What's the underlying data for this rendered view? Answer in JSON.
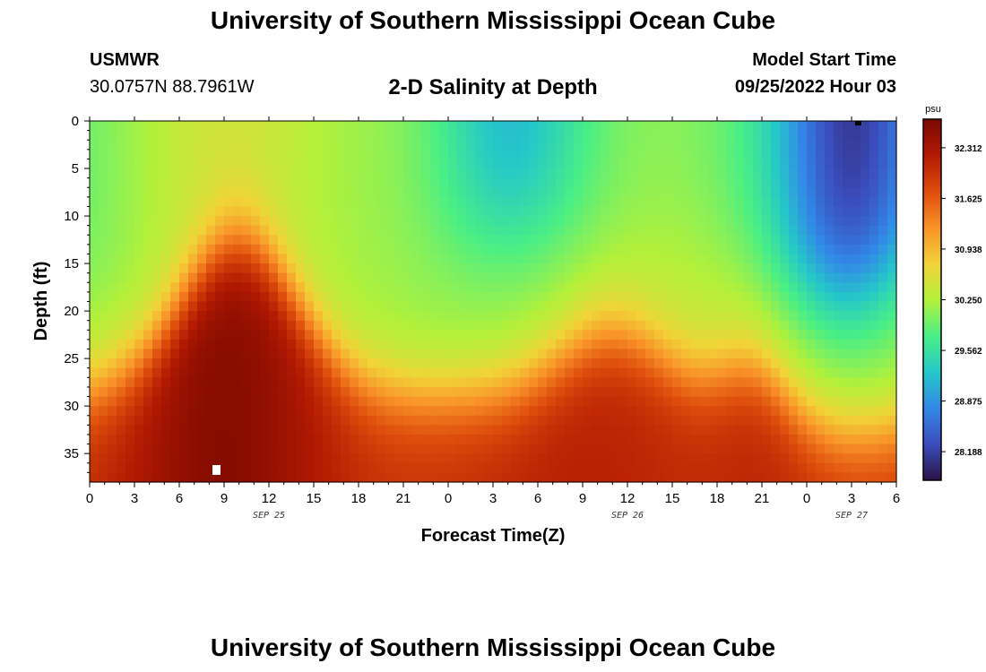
{
  "header": {
    "title": "University of Southern Mississippi Ocean Cube",
    "station_code": "USMWR",
    "station_coords": "30.0757N  88.7961W",
    "plot_title": "2-D Salinity at Depth",
    "model_label": "Model Start Time",
    "model_start": "09/25/2022 Hour 03"
  },
  "footer": {
    "title": "University of Southern Mississippi Ocean Cube"
  },
  "chart_data": {
    "type": "heatmap",
    "title": "2-D Salinity at Depth",
    "xlabel": "Forecast Time(Z)",
    "ylabel": "Depth (ft)",
    "x_range_hours": [
      0,
      54
    ],
    "ylim": [
      0,
      38
    ],
    "y_inverted": true,
    "x_ticks": [
      "0",
      "3",
      "6",
      "9",
      "12",
      "15",
      "18",
      "21",
      "0",
      "3",
      "6",
      "9",
      "12",
      "15",
      "18",
      "21",
      "0",
      "3",
      "6"
    ],
    "y_ticks": [
      0,
      5,
      10,
      15,
      20,
      25,
      30,
      35
    ],
    "date_labels": [
      {
        "label": "SEP 25",
        "at_hour": 12
      },
      {
        "label": "SEP 26",
        "at_hour": 36
      },
      {
        "label": "SEP 27",
        "at_hour": 51
      }
    ],
    "colorbar": {
      "unit": "psu",
      "min": 27.8,
      "max": 32.7,
      "ticks": [
        "32.312",
        "31.625",
        "30.938",
        "30.250",
        "29.562",
        "28.875",
        "28.188"
      ],
      "colormap": [
        "#2b1347",
        "#3b4dbd",
        "#3288e8",
        "#25c8c8",
        "#4aef85",
        "#b3f03a",
        "#f2d338",
        "#f99128",
        "#de4d0c",
        "#b31a02",
        "#7c0800"
      ]
    },
    "surface_layer_psu": [
      {
        "hour": 0,
        "value": 29.6
      },
      {
        "hour": 9,
        "value": 30.3
      },
      {
        "hour": 12,
        "value": 30.1
      },
      {
        "hour": 21,
        "value": 29.6
      },
      {
        "hour": 27,
        "value": 29.0
      },
      {
        "hour": 33,
        "value": 29.8
      },
      {
        "hour": 39,
        "value": 30.1
      },
      {
        "hour": 45,
        "value": 29.4
      },
      {
        "hour": 51,
        "value": 28.1
      },
      {
        "hour": 54,
        "value": 28.2
      }
    ],
    "bottom_layer_psu": [
      {
        "hour": 0,
        "value": 31.8
      },
      {
        "hour": 9,
        "value": 32.6
      },
      {
        "hour": 21,
        "value": 32.0
      },
      {
        "hour": 33,
        "value": 32.2
      },
      {
        "hour": 54,
        "value": 32.1
      }
    ]
  }
}
